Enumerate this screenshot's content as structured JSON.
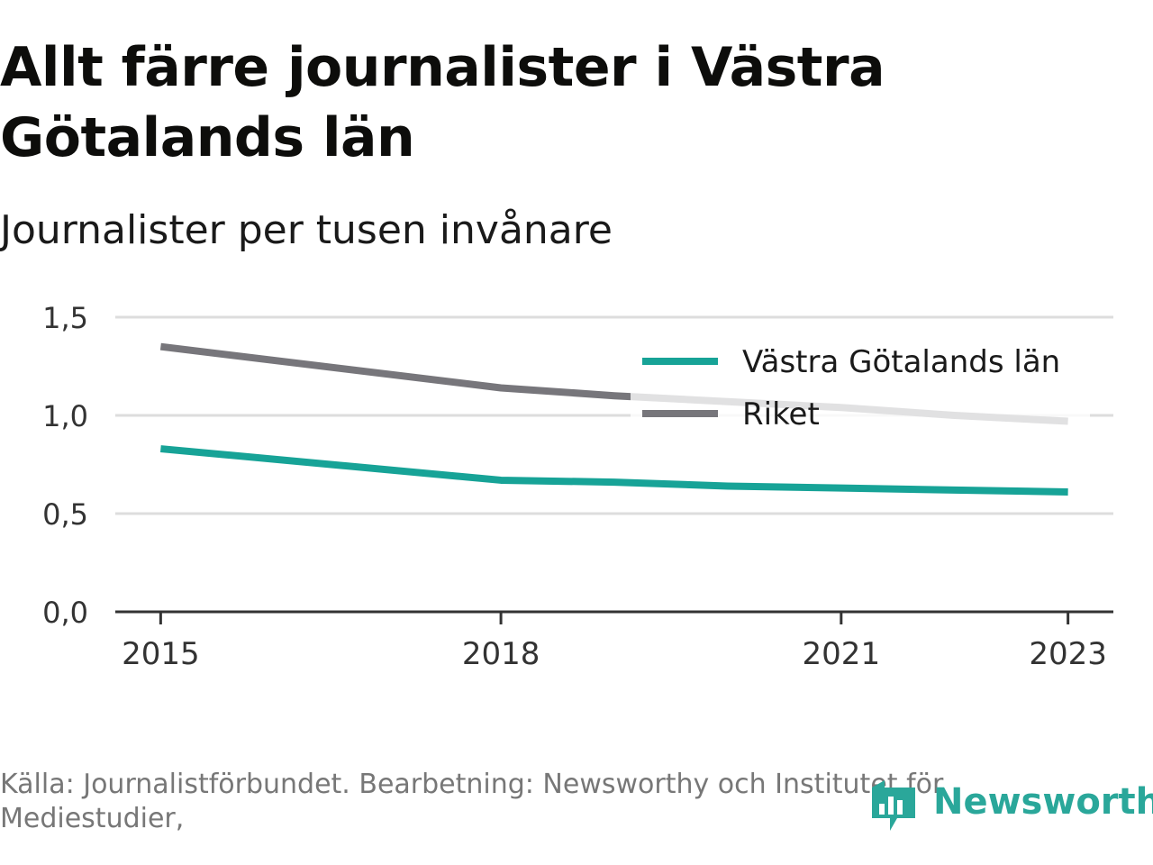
{
  "title": "Allt färre journalister i Västra Götalands län",
  "subtitle": "Journalister per tusen invånare",
  "source": "Källa: Journalistförbundet. Bearbetning: Newsworthy och Institutet för Mediestudier,",
  "logo": {
    "text": "Newsworthy",
    "icon": "newsworthy-logo-icon"
  },
  "colors": {
    "region": "#17a397",
    "riket": "#77767b",
    "grid": "#dddddd",
    "axis": "#333333",
    "logo": "#2aa79a"
  },
  "chart_data": {
    "type": "line",
    "x": [
      2015,
      2018,
      2019,
      2020,
      2021,
      2022,
      2023
    ],
    "xticks": [
      2015,
      2018,
      2021,
      2023
    ],
    "xtick_labels": [
      "2015",
      "2018",
      "2021",
      "2023"
    ],
    "yticks": [
      0,
      0.5,
      1.0,
      1.5
    ],
    "ytick_labels": [
      "0,0",
      "0,5",
      "1,0",
      "1,5"
    ],
    "ylim": [
      0,
      1.5
    ],
    "xlim": [
      2014.6,
      2023.4
    ],
    "grid": true,
    "legend_position": "top-right",
    "series": [
      {
        "name": "Västra Götalands län",
        "color": "#17a397",
        "values": [
          0.83,
          0.67,
          0.66,
          0.64,
          0.63,
          0.62,
          0.61
        ]
      },
      {
        "name": "Riket",
        "color": "#77767b",
        "values": [
          1.35,
          1.14,
          1.1,
          1.07,
          1.04,
          1.0,
          0.97
        ]
      }
    ]
  }
}
